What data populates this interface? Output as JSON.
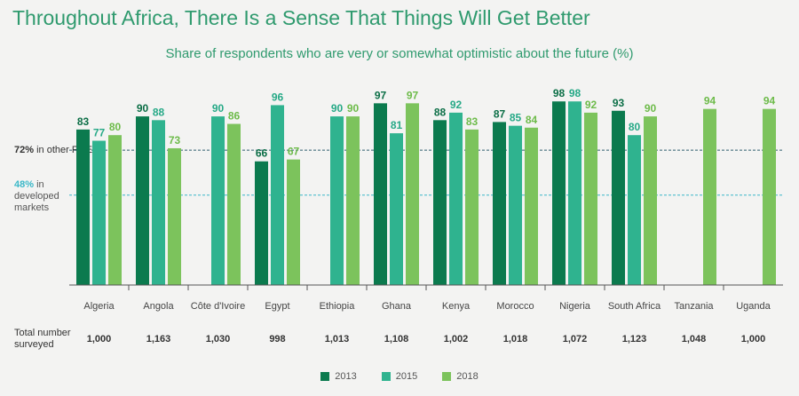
{
  "chart_data": {
    "type": "bar",
    "title": "Throughout Africa, There Is a Sense That Things Will Get Better",
    "subtitle": "Share of respondents who are very or somewhat optimistic about the future (%)",
    "ylim": [
      0,
      100
    ],
    "categories": [
      "Algeria",
      "Angola",
      "Côte d'Ivoire",
      "Egypt",
      "Ethiopia",
      "Ghana",
      "Kenya",
      "Morocco",
      "Nigeria",
      "South Africa",
      "Tanzania",
      "Uganda"
    ],
    "series": [
      {
        "name": "2013",
        "color": "#0b7a4e",
        "values": [
          83,
          90,
          null,
          66,
          null,
          97,
          88,
          87,
          98,
          93,
          null,
          null
        ]
      },
      {
        "name": "2015",
        "color": "#2fb38f",
        "values": [
          77,
          88,
          90,
          96,
          90,
          81,
          92,
          85,
          98,
          80,
          null,
          null
        ]
      },
      {
        "name": "2018",
        "color": "#7cc35c",
        "values": [
          80,
          73,
          86,
          67,
          90,
          97,
          83,
          84,
          92,
          90,
          94,
          94
        ]
      }
    ],
    "label_colors": {
      "2013": "#0b6e46",
      "2015": "#26a987",
      "2018": "#6dbb4a"
    },
    "reference_lines": [
      {
        "value": 72,
        "bold": "72%",
        "text": " in other RDEs",
        "color": "#2e5e6e"
      },
      {
        "value": 48,
        "bold": "48%",
        "text": " in developed markets",
        "color": "#3bb8c8"
      }
    ],
    "totals_label": "Total number surveyed",
    "totals": [
      "1,000",
      "1,163",
      "1,030",
      "998",
      "1,013",
      "1,108",
      "1,002",
      "1,018",
      "1,072",
      "1,123",
      "1,048",
      "1,000"
    ]
  },
  "ref_labels": {
    "other_bold": "72%",
    "other_text": " in other RDEs",
    "developed_bold": "48%",
    "developed_text": " in developed markets"
  },
  "legend": [
    {
      "label": "2013",
      "color": "#0b7a4e"
    },
    {
      "label": "2015",
      "color": "#2fb38f"
    },
    {
      "label": "2018",
      "color": "#7cc35c"
    }
  ]
}
